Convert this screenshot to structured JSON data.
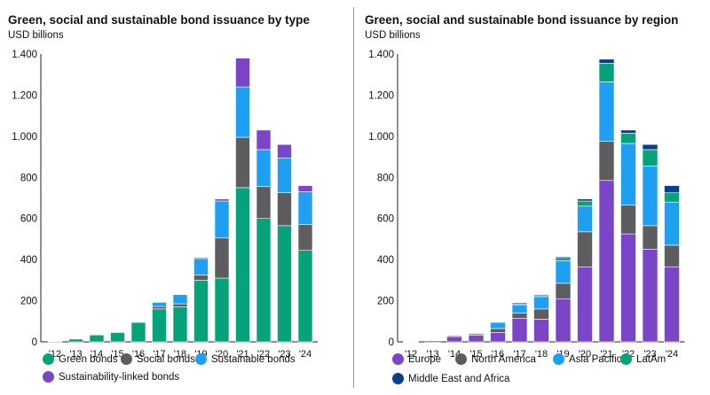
{
  "chart_data": [
    {
      "type": "bar",
      "stacked": true,
      "title": "Green, social and sustainable bond issuance by type",
      "ylabel": "USD billions",
      "ylim": [
        0,
        1400
      ],
      "yticks": [
        0,
        200,
        400,
        600,
        800,
        1000,
        1200,
        1400
      ],
      "ytick_labels": [
        "0",
        "200",
        "400",
        "600",
        "800",
        "1.000",
        "1.200",
        "1.400"
      ],
      "grid": false,
      "legend_position": "bottom",
      "categories": [
        "'12",
        "'13",
        "'14",
        "'15",
        "'16",
        "'17",
        "'18",
        "'19",
        "'20",
        "'21",
        "'22",
        "'23",
        "'24"
      ],
      "series": [
        {
          "name": "Green bonds",
          "color": "#06a27a",
          "values": [
            3,
            15,
            35,
            47,
            95,
            160,
            170,
            300,
            310,
            750,
            600,
            565,
            445
          ]
        },
        {
          "name": "Social bonds",
          "color": "#5d5d5f",
          "values": [
            1,
            1,
            1,
            1,
            2,
            12,
            15,
            25,
            195,
            245,
            155,
            160,
            125
          ]
        },
        {
          "name": "Sustainable bonds",
          "color": "#1e9ff2",
          "values": [
            0,
            0,
            0,
            0,
            3,
            20,
            45,
            80,
            180,
            245,
            180,
            170,
            160
          ]
        },
        {
          "name": "Sustainability-linked bonds",
          "color": "#7a45c6",
          "values": [
            0,
            0,
            0,
            0,
            0,
            0,
            0,
            5,
            10,
            140,
            95,
            65,
            30
          ]
        }
      ]
    },
    {
      "type": "bar",
      "stacked": true,
      "title": "Green, social and sustainable bond issuance by region",
      "ylabel": "USD billions",
      "ylim": [
        0,
        1400
      ],
      "yticks": [
        0,
        200,
        400,
        600,
        800,
        1000,
        1200,
        1400
      ],
      "ytick_labels": [
        "0",
        "200",
        "400",
        "600",
        "800",
        "1.000",
        "1.200",
        "1.400"
      ],
      "grid": false,
      "legend_position": "bottom",
      "categories": [
        "'12",
        "'13",
        "'14",
        "'15",
        "'16",
        "'17",
        "'18",
        "'19",
        "'20",
        "'21",
        "'22",
        "'23",
        "'24"
      ],
      "series": [
        {
          "name": "Europe",
          "color": "#7a45c6",
          "values": [
            2,
            6,
            25,
            32,
            45,
            115,
            110,
            210,
            365,
            785,
            525,
            450,
            365
          ]
        },
        {
          "name": "North America",
          "color": "#5d5d5f",
          "values": [
            1,
            2,
            5,
            7,
            20,
            25,
            50,
            75,
            170,
            190,
            140,
            115,
            105
          ]
        },
        {
          "name": "Asia Pacific",
          "color": "#1e9ff2",
          "values": [
            0,
            1,
            3,
            5,
            30,
            40,
            60,
            110,
            125,
            290,
            300,
            290,
            210
          ]
        },
        {
          "name": "LatAm",
          "color": "#06a27a",
          "values": [
            0,
            0,
            1,
            1,
            3,
            5,
            5,
            15,
            25,
            90,
            50,
            80,
            45
          ]
        },
        {
          "name": "Middle East and Africa",
          "color": "#0b3d8c",
          "values": [
            0,
            0,
            0,
            0,
            2,
            5,
            5,
            5,
            10,
            20,
            15,
            25,
            35
          ]
        }
      ]
    }
  ]
}
